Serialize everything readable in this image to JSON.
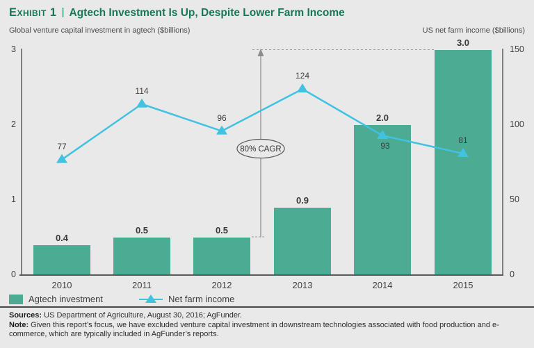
{
  "header": {
    "exhibit_label": "Exhibit 1",
    "separator": "|",
    "title": "Agtech Investment Is Up, Despite Lower Farm Income",
    "left_axis_title": "Global venture capital investment in agtech ($billions)",
    "right_axis_title": "US net farm income ($billions)"
  },
  "chart_data": {
    "type": "bar+line combo",
    "categories": [
      "2010",
      "2011",
      "2012",
      "2013",
      "2014",
      "2015"
    ],
    "series": [
      {
        "name": "Agtech investment",
        "type": "bar",
        "axis": "left",
        "color": "#4cab93",
        "values": [
          0.4,
          0.5,
          0.5,
          0.9,
          2.0,
          3.0
        ],
        "labels": [
          "0.4",
          "0.5",
          "0.5",
          "0.9",
          "2.0",
          "3.0"
        ]
      },
      {
        "name": "Net farm income",
        "type": "line",
        "axis": "right",
        "color": "#41c2e0",
        "marker": "triangle-up",
        "values": [
          77,
          114,
          96,
          124,
          93,
          81
        ],
        "label_position": [
          "above",
          "above",
          "above",
          "above",
          "below",
          "above"
        ]
      }
    ],
    "left_axis": {
      "ticks": [
        0,
        1,
        2,
        3
      ],
      "range": [
        0,
        3
      ]
    },
    "right_axis": {
      "ticks": [
        0,
        50,
        100,
        150
      ],
      "range": [
        0,
        150
      ]
    },
    "annotation": {
      "text": "80% CAGR",
      "from_left_axis_value": 0.5,
      "to_left_axis_value": 3.0,
      "dashed_guide_to_last_bar": true
    },
    "grid": false,
    "legend_position": "bottom-left"
  },
  "legend": {
    "items": [
      {
        "label": "Agtech investment",
        "marker": "square",
        "color": "#4cab93"
      },
      {
        "label": "Net farm income",
        "marker": "triangle-line",
        "color": "#41c2e0"
      }
    ]
  },
  "footer": {
    "sources_label": "Sources:",
    "sources_text": "US Department of Agriculture, August 30, 2016; AgFunder.",
    "note_label": "Note:",
    "note_text": "Given this report’s focus, we have excluded venture capital investment in downstream technologies associated with food production and e-commerce, which are typically included in AgFunder’s reports."
  }
}
